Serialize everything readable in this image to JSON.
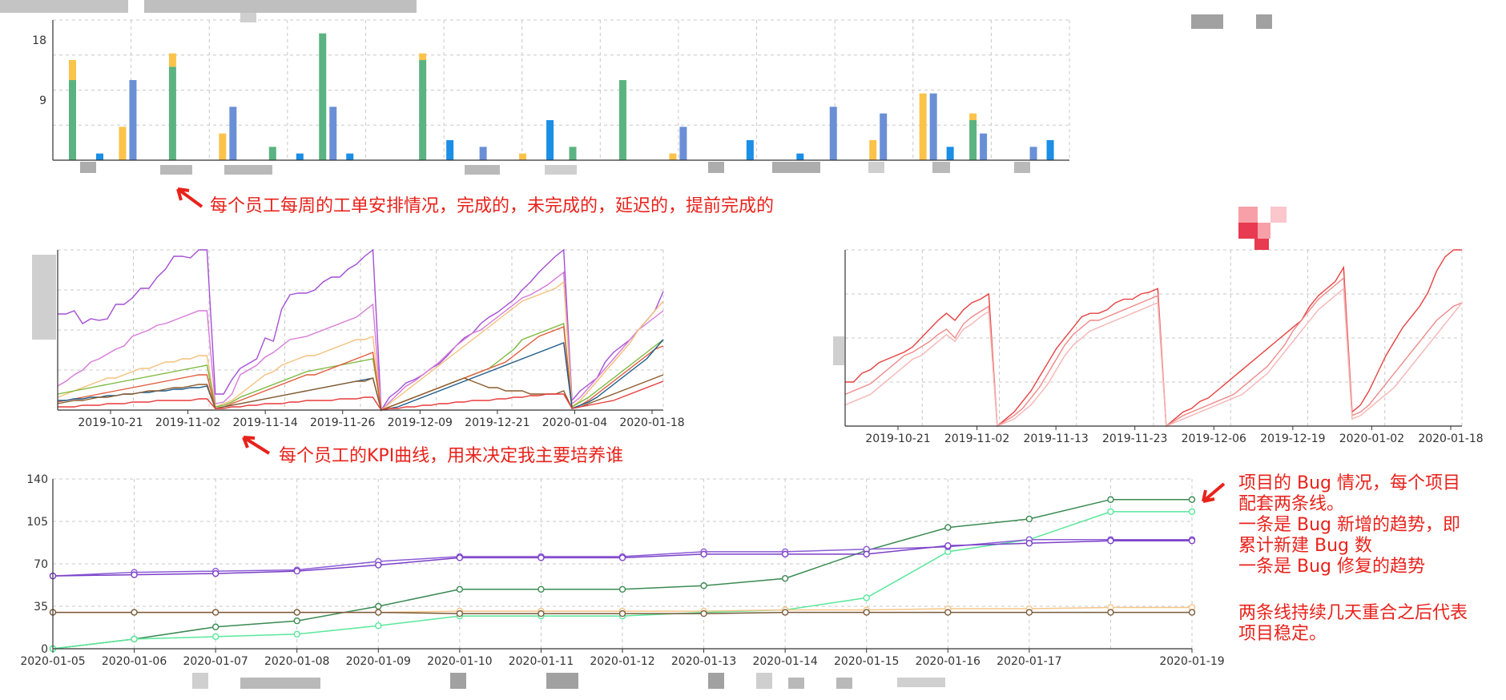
{
  "annotations": {
    "weekly": "每个员工每周的工单安排情况，完成的，未完成的，延迟的，提前完成的",
    "kpi": "每个员工的KPI曲线，用来决定我主要培养谁",
    "bug_1": "项目的 Bug 情况，每个项目",
    "bug_2": "配套两条线。",
    "bug_3": "一条是 Bug 新增的趋势，即",
    "bug_4": "累计新建 Bug 数",
    "bug_5": "一条是  Bug 修复的趋势",
    "bug_6": "两条线持续几天重合之后代表",
    "bug_7": "项目稳定。"
  },
  "colors": {
    "annotation": "#e8221b",
    "weekly_done": "#5bb381",
    "weekly_unfinished": "#fbc34a",
    "weekly_delayed": "#6a8fd6",
    "weekly_early": "#1b8ee6",
    "weekly_red": "#f0505a"
  },
  "chart_data": [
    {
      "type": "bar",
      "yticks": [
        9,
        18
      ],
      "ylim": [
        0,
        21
      ],
      "series": [
        {
          "key": "done",
          "values": [
            12,
            0,
            14,
            0,
            2,
            19,
            0,
            15,
            0,
            0,
            2,
            12,
            0,
            0,
            0,
            0,
            0,
            0,
            6,
            0
          ]
        },
        {
          "key": "unfinished",
          "values": [
            3,
            5,
            2,
            4,
            0,
            0,
            0,
            1,
            0,
            1,
            0,
            0,
            1,
            0,
            0,
            0,
            3,
            10,
            1,
            0
          ]
        },
        {
          "key": "delayed",
          "values": [
            0,
            12,
            0,
            8,
            0,
            8,
            0,
            0,
            2,
            0,
            0,
            0,
            5,
            0,
            0,
            8,
            7,
            10,
            4,
            2
          ]
        },
        {
          "key": "early",
          "values": [
            1,
            0,
            0,
            0,
            1,
            1,
            0,
            3,
            0,
            6,
            0,
            0,
            0,
            3,
            1,
            0,
            0,
            2,
            0,
            3
          ]
        }
      ]
    },
    {
      "type": "line",
      "xticks": [
        "2019-10-21",
        "2019-11-02",
        "2019-11-14",
        "2019-11-26",
        "2019-12-09",
        "2019-12-21",
        "2020-01-04",
        "2020-01-18"
      ],
      "series": [
        {
          "color": "#a44fd4",
          "values": [
            60,
            60,
            62,
            54,
            57,
            56,
            57,
            66,
            66,
            70,
            76,
            76,
            83,
            88,
            96,
            96,
            95,
            100,
            100,
            10,
            10,
            19,
            26,
            29,
            32,
            45,
            43,
            63,
            72,
            73,
            73,
            75,
            80,
            83,
            83,
            88,
            91,
            96,
            100,
            0,
            8,
            12,
            17,
            19,
            22,
            26,
            29,
            34,
            40,
            45,
            48,
            54,
            58,
            61,
            65,
            69,
            75,
            80,
            86,
            91,
            96,
            100,
            6,
            12,
            16,
            20,
            30,
            36,
            40,
            44,
            50,
            56,
            62,
            74
          ]
        },
        {
          "color": "#d67ad8",
          "values": [
            15,
            18,
            22,
            25,
            30,
            32,
            35,
            38,
            40,
            46,
            48,
            50,
            53,
            54,
            56,
            58,
            60,
            62,
            62,
            4,
            5,
            10,
            22,
            25,
            28,
            33,
            36,
            40,
            44,
            45,
            46,
            48,
            50,
            52,
            54,
            56,
            58,
            62,
            66,
            0,
            5,
            10,
            15,
            18,
            22,
            26,
            30,
            35,
            40,
            44,
            48,
            50,
            54,
            58,
            62,
            66,
            70,
            72,
            75,
            78,
            82,
            86,
            4,
            8,
            14,
            20,
            26,
            32,
            38,
            44,
            50,
            54,
            58,
            62
          ]
        },
        {
          "color": "#f5c07a",
          "values": [
            8,
            10,
            12,
            14,
            16,
            18,
            20,
            20,
            22,
            24,
            26,
            26,
            28,
            30,
            30,
            32,
            32,
            34,
            34,
            2,
            4,
            6,
            10,
            14,
            18,
            22,
            24,
            28,
            30,
            32,
            34,
            34,
            36,
            38,
            40,
            42,
            44,
            44,
            46,
            0,
            4,
            8,
            12,
            16,
            20,
            24,
            28,
            32,
            36,
            40,
            44,
            48,
            52,
            56,
            60,
            64,
            68,
            70,
            72,
            74,
            76,
            80,
            2,
            6,
            12,
            18,
            24,
            30,
            36,
            42,
            50,
            56,
            62,
            68
          ]
        },
        {
          "color": "#7ab83b",
          "values": [
            10,
            11,
            12,
            13,
            14,
            15,
            16,
            17,
            18,
            19,
            20,
            21,
            22,
            23,
            24,
            25,
            26,
            27,
            28,
            2,
            3,
            5,
            8,
            10,
            12,
            14,
            16,
            18,
            20,
            22,
            24,
            25,
            26,
            27,
            28,
            29,
            30,
            31,
            32,
            0,
            2,
            4,
            6,
            8,
            10,
            12,
            14,
            16,
            18,
            20,
            22,
            24,
            26,
            30,
            34,
            38,
            44,
            46,
            48,
            50,
            52,
            54,
            2,
            5,
            8,
            12,
            16,
            20,
            24,
            28,
            32,
            36,
            40,
            44
          ]
        },
        {
          "color": "#e05a3a",
          "values": [
            5,
            6,
            7,
            8,
            9,
            10,
            11,
            12,
            13,
            14,
            15,
            16,
            17,
            18,
            19,
            20,
            21,
            22,
            22,
            1,
            2,
            4,
            6,
            8,
            10,
            12,
            14,
            16,
            18,
            20,
            22,
            22,
            24,
            26,
            28,
            30,
            32,
            34,
            36,
            0,
            2,
            4,
            6,
            8,
            10,
            12,
            14,
            16,
            18,
            20,
            22,
            24,
            26,
            28,
            30,
            34,
            38,
            42,
            46,
            48,
            50,
            52,
            1,
            3,
            6,
            10,
            14,
            18,
            22,
            26,
            30,
            34,
            38,
            40
          ]
        },
        {
          "color": "#1c5a8a",
          "values": [
            6,
            6,
            7,
            7,
            8,
            8,
            9,
            9,
            10,
            10,
            11,
            11,
            12,
            12,
            13,
            13,
            14,
            14,
            15,
            1,
            2,
            3,
            4,
            5,
            6,
            7,
            8,
            9,
            10,
            11,
            12,
            13,
            14,
            15,
            16,
            17,
            18,
            19,
            20,
            0,
            1,
            2,
            4,
            6,
            8,
            10,
            12,
            14,
            16,
            18,
            20,
            22,
            24,
            26,
            28,
            30,
            32,
            34,
            36,
            38,
            40,
            42,
            1,
            3,
            5,
            8,
            12,
            16,
            20,
            24,
            28,
            32,
            38,
            44
          ]
        },
        {
          "color": "#8b5a2b",
          "values": [
            4,
            5,
            6,
            6,
            7,
            8,
            8,
            9,
            10,
            10,
            11,
            12,
            12,
            13,
            14,
            14,
            15,
            16,
            16,
            1,
            2,
            3,
            4,
            5,
            6,
            7,
            8,
            9,
            10,
            11,
            12,
            13,
            14,
            15,
            16,
            17,
            18,
            18,
            20,
            0,
            2,
            4,
            6,
            8,
            10,
            12,
            14,
            16,
            18,
            20,
            18,
            16,
            14,
            14,
            12,
            12,
            12,
            10,
            10,
            10,
            10,
            12,
            1,
            2,
            4,
            6,
            8,
            10,
            12,
            14,
            16,
            18,
            20,
            22
          ]
        },
        {
          "color": "#e83a3a",
          "values": [
            2,
            2,
            2,
            3,
            3,
            3,
            4,
            4,
            4,
            5,
            5,
            5,
            6,
            6,
            6,
            6,
            6,
            7,
            7,
            1,
            1,
            2,
            2,
            3,
            3,
            4,
            4,
            4,
            5,
            5,
            6,
            6,
            6,
            6,
            7,
            7,
            7,
            8,
            8,
            0,
            1,
            1,
            2,
            2,
            3,
            3,
            4,
            4,
            5,
            5,
            6,
            6,
            6,
            7,
            7,
            8,
            8,
            9,
            9,
            10,
            10,
            10,
            1,
            2,
            3,
            4,
            5,
            6,
            8,
            10,
            12,
            14,
            16,
            18
          ]
        }
      ]
    },
    {
      "type": "line",
      "xticks": [
        "2019-10-21",
        "2019-11-02",
        "2019-11-13",
        "2019-11-23",
        "2019-12-06",
        "2019-12-19",
        "2020-01-02",
        "2020-01-18"
      ],
      "series": [
        {
          "color": "#e84040",
          "values": [
            25,
            25,
            30,
            32,
            36,
            38,
            40,
            42,
            45,
            50,
            55,
            60,
            64,
            60,
            66,
            70,
            72,
            75,
            0,
            4,
            8,
            14,
            20,
            28,
            36,
            44,
            50,
            56,
            62,
            64,
            64,
            66,
            70,
            72,
            72,
            75,
            76,
            78,
            0,
            4,
            8,
            10,
            14,
            16,
            20,
            24,
            28,
            32,
            36,
            40,
            44,
            48,
            52,
            56,
            60,
            68,
            74,
            78,
            82,
            90,
            8,
            12,
            20,
            30,
            40,
            48,
            56,
            62,
            68,
            76,
            88,
            96,
            100,
            100
          ]
        },
        {
          "color": "#f08a8a",
          "values": [
            18,
            20,
            22,
            24,
            28,
            32,
            36,
            40,
            42,
            45,
            48,
            52,
            55,
            50,
            58,
            62,
            65,
            68,
            0,
            3,
            6,
            10,
            16,
            22,
            30,
            38,
            46,
            52,
            56,
            60,
            60,
            62,
            64,
            66,
            68,
            70,
            72,
            74,
            0,
            3,
            6,
            8,
            10,
            12,
            14,
            16,
            18,
            22,
            26,
            30,
            34,
            40,
            46,
            54,
            60,
            66,
            72,
            76,
            80,
            84,
            6,
            8,
            12,
            18,
            24,
            30,
            36,
            42,
            48,
            54,
            60,
            64,
            68,
            70
          ]
        },
        {
          "color": "#f5b5b5",
          "values": [
            12,
            14,
            16,
            18,
            22,
            26,
            30,
            34,
            38,
            40,
            44,
            48,
            52,
            48,
            55,
            58,
            62,
            65,
            0,
            2,
            4,
            8,
            12,
            18,
            24,
            32,
            40,
            46,
            50,
            54,
            56,
            58,
            60,
            62,
            64,
            66,
            68,
            70,
            0,
            2,
            4,
            6,
            8,
            10,
            12,
            14,
            16,
            18,
            22,
            26,
            30,
            36,
            42,
            48,
            54,
            60,
            66,
            70,
            74,
            78,
            4,
            6,
            10,
            14,
            18,
            22,
            28,
            34,
            40,
            46,
            52,
            58,
            64,
            70
          ]
        }
      ]
    },
    {
      "type": "line",
      "x": [
        "2020-01-05",
        "2020-01-06",
        "2020-01-07",
        "2020-01-08",
        "2020-01-09",
        "2020-01-10",
        "2020-01-11",
        "2020-01-12",
        "2020-01-13",
        "2020-01-14",
        "2020-01-15",
        "2020-01-16",
        "2020-01-17",
        "",
        "2020-01-19"
      ],
      "yticks": [
        0,
        35,
        70,
        105,
        140
      ],
      "ylim": [
        0,
        140
      ],
      "series": [
        {
          "color": "#3a8a52",
          "values": [
            0,
            8,
            18,
            23,
            35,
            49,
            49,
            49,
            52,
            58,
            81,
            100,
            107,
            123,
            123
          ]
        },
        {
          "color": "#58e89a",
          "values": [
            0,
            8,
            10,
            12,
            19,
            27,
            27,
            27,
            30,
            32,
            42,
            80,
            90,
            113,
            113
          ]
        },
        {
          "color": "#8b5cd6",
          "values": [
            60,
            63,
            64,
            65,
            72,
            76,
            76,
            76,
            80,
            80,
            82,
            84,
            90,
            90,
            90
          ]
        },
        {
          "color": "#7b3fc8",
          "values": [
            60,
            61,
            62,
            64,
            69,
            75,
            75,
            75,
            78,
            78,
            78,
            85,
            87,
            89,
            89
          ]
        },
        {
          "color": "#f5c58a",
          "values": [
            30,
            30,
            30,
            30,
            30,
            31,
            31,
            31,
            31,
            32,
            32,
            33,
            33,
            34,
            34
          ]
        },
        {
          "color": "#7a5a3a",
          "values": [
            30,
            30,
            30,
            30,
            30,
            29,
            29,
            29,
            29,
            30,
            30,
            30,
            30,
            30,
            30
          ]
        }
      ]
    }
  ]
}
